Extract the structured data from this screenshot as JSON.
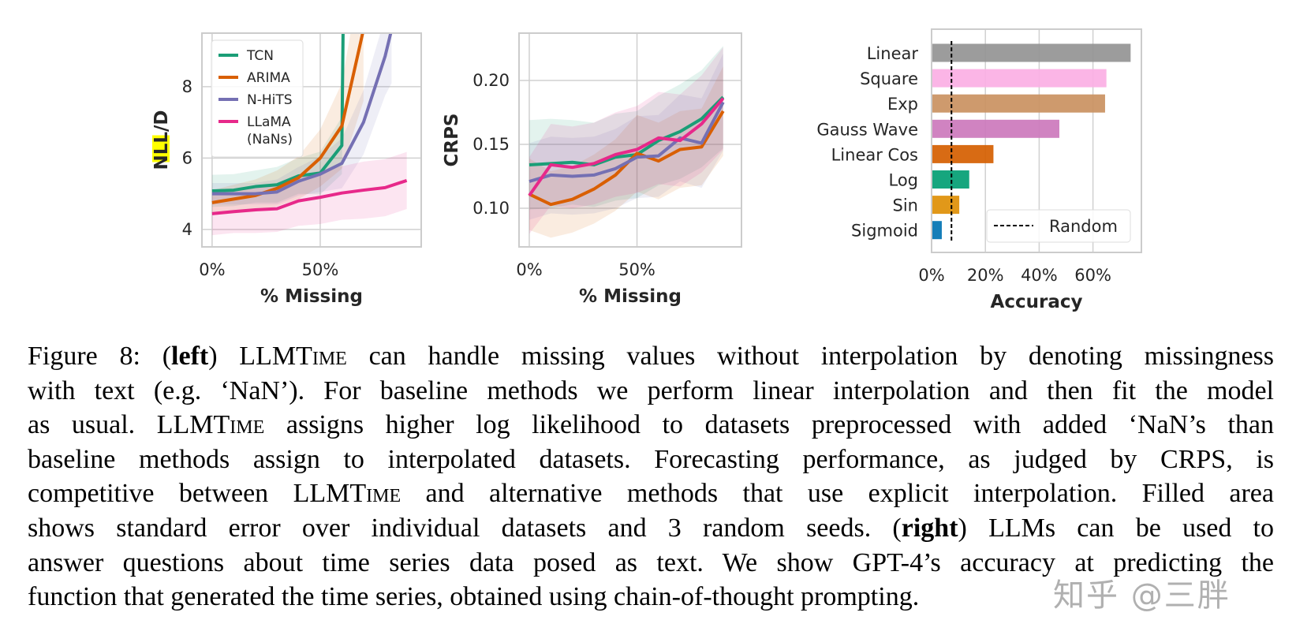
{
  "chart_data": [
    {
      "type": "line",
      "xlabel": "% Missing",
      "ylabel": "NLL/D",
      "xlim": [
        -4.7,
        96.7
      ],
      "ylim": [
        3.51,
        9.5
      ],
      "xticks": [
        0,
        50
      ],
      "xtick_labels": [
        "0%",
        "50%"
      ],
      "yticks": [
        4,
        6,
        8
      ],
      "ytick_labels": [
        "4",
        "6",
        "8"
      ],
      "grid": true,
      "legend": "top-left",
      "series": [
        {
          "name": "TCN",
          "color": "#1b9e77",
          "x": [
            0,
            10,
            20,
            30,
            40,
            50,
            60,
            61
          ],
          "y": [
            5.08,
            5.1,
            5.2,
            5.25,
            5.5,
            5.58,
            6.35,
            12
          ],
          "err": [
            0.45,
            0.45,
            0.45,
            0.5,
            0.5,
            0.6,
            0.8,
            2
          ]
        },
        {
          "name": "ARIMA",
          "color": "#d95f02",
          "x": [
            0,
            10,
            20,
            30,
            40,
            50,
            60,
            70
          ],
          "y": [
            4.75,
            4.85,
            4.95,
            5.15,
            5.45,
            6.0,
            6.9,
            9.6
          ],
          "err": [
            0.35,
            0.4,
            0.45,
            0.5,
            0.6,
            0.8,
            1.2,
            2
          ]
        },
        {
          "name": "N-HiTS",
          "color": "#7570b3",
          "x": [
            0,
            10,
            20,
            30,
            40,
            50,
            60,
            70,
            80,
            83
          ],
          "y": [
            5.0,
            5.0,
            5.0,
            5.05,
            5.35,
            5.55,
            5.85,
            7.0,
            8.85,
            9.6
          ],
          "err": [
            0.3,
            0.3,
            0.3,
            0.35,
            0.4,
            0.5,
            0.7,
            0.9,
            1.1,
            1.5
          ]
        },
        {
          "name": "LLaMA\n(NaNs)",
          "color": "#e7298a",
          "x": [
            0,
            10,
            20,
            30,
            40,
            50,
            60,
            70,
            80,
            90
          ],
          "y": [
            4.44,
            4.5,
            4.55,
            4.58,
            4.8,
            4.9,
            5.02,
            5.1,
            5.17,
            5.37
          ],
          "err": [
            0.6,
            0.6,
            0.65,
            0.65,
            0.7,
            0.75,
            0.75,
            0.8,
            0.8,
            0.8
          ]
        }
      ]
    },
    {
      "type": "line",
      "xlabel": "% Missing",
      "ylabel": "CRPS",
      "xlim": [
        -4.76,
        98.5
      ],
      "ylim": [
        0.0698,
        0.237
      ],
      "xticks": [
        0,
        50
      ],
      "xtick_labels": [
        "0%",
        "50%"
      ],
      "yticks": [
        0.1,
        0.15,
        0.2
      ],
      "ytick_labels": [
        "0.10",
        "0.15",
        "0.20"
      ],
      "grid": true,
      "series": [
        {
          "name": "TCN",
          "color": "#1b9e77",
          "x": [
            0,
            10,
            20,
            30,
            40,
            50,
            60,
            70,
            80,
            90
          ],
          "y": [
            0.134,
            0.135,
            0.136,
            0.134,
            0.14,
            0.142,
            0.153,
            0.16,
            0.17,
            0.187
          ],
          "err": [
            0.035,
            0.035,
            0.033,
            0.033,
            0.034,
            0.034,
            0.035,
            0.037,
            0.038,
            0.04
          ]
        },
        {
          "name": "ARIMA",
          "color": "#d95f02",
          "x": [
            0,
            10,
            20,
            30,
            40,
            50,
            60,
            70,
            80,
            90
          ],
          "y": [
            0.111,
            0.103,
            0.107,
            0.115,
            0.126,
            0.143,
            0.137,
            0.146,
            0.148,
            0.176
          ],
          "err": [
            0.028,
            0.026,
            0.026,
            0.027,
            0.028,
            0.03,
            0.03,
            0.03,
            0.03,
            0.035
          ]
        },
        {
          "name": "N-HiTS",
          "color": "#7570b3",
          "x": [
            0,
            10,
            20,
            30,
            40,
            50,
            60,
            70,
            80,
            90
          ],
          "y": [
            0.121,
            0.126,
            0.125,
            0.126,
            0.131,
            0.14,
            0.141,
            0.155,
            0.151,
            0.183
          ],
          "err": [
            0.03,
            0.03,
            0.03,
            0.03,
            0.031,
            0.032,
            0.032,
            0.034,
            0.035,
            0.038
          ]
        },
        {
          "name": "LLaMA (NaNs)",
          "color": "#e7298a",
          "x": [
            0,
            10,
            20,
            30,
            40,
            50,
            60,
            70,
            80,
            90
          ],
          "y": [
            0.11,
            0.134,
            0.132,
            0.135,
            0.142,
            0.146,
            0.155,
            0.153,
            0.166,
            0.186
          ],
          "err": [
            0.03,
            0.032,
            0.032,
            0.032,
            0.033,
            0.034,
            0.036,
            0.036,
            0.038,
            0.04
          ]
        }
      ]
    },
    {
      "type": "bar",
      "orientation": "horizontal",
      "xlabel": "Accuracy",
      "xlim": [
        0,
        78
      ],
      "xticks": [
        0,
        20,
        40,
        60
      ],
      "xtick_labels": [
        "0%",
        "20%",
        "40%",
        "60%"
      ],
      "grid": true,
      "legend": "bottom-right",
      "categories": [
        "Linear",
        "Square",
        "Exp",
        "Gauss Wave",
        "Linear Cos",
        "Log",
        "Sin",
        "Sigmoid"
      ],
      "values": [
        74,
        65,
        64.5,
        47.5,
        23,
        14,
        10.3,
        3.8
      ],
      "colors": [
        "#949494",
        "#fbafe4",
        "#ca9161",
        "#cc78bc",
        "#d55e00",
        "#029e73",
        "#de8f05",
        "#0173b2"
      ],
      "reference_line": {
        "name": "Random",
        "value": 7.4,
        "style": "dashed"
      }
    }
  ],
  "caption": {
    "lines": [
      [
        {
          "t": "Figure 8: ("
        },
        {
          "t": "left",
          "s": "b"
        },
        {
          "t": ") LLMT"
        },
        {
          "t": "ime",
          "s": "sc"
        },
        {
          "t": " can handle missing values without interpolation by denoting missingness"
        }
      ],
      [
        {
          "t": "with text (e.g. ‘NaN’). For baseline methods we perform linear interpolation and then fit the model"
        }
      ],
      [
        {
          "t": "as usual. LLMT"
        },
        {
          "t": "ime",
          "s": "sc"
        },
        {
          "t": " assigns higher log likelihood to datasets preprocessed with added ‘NaN’s than"
        }
      ],
      [
        {
          "t": "baseline methods assign to interpolated datasets. Forecasting performance, as judged by CRPS, is"
        }
      ],
      [
        {
          "t": "competitive between LLMT"
        },
        {
          "t": "ime",
          "s": "sc"
        },
        {
          "t": " and alternative methods that use explicit interpolation. Filled area"
        }
      ],
      [
        {
          "t": "shows standard error over individual datasets and 3 random seeds. ("
        },
        {
          "t": "right",
          "s": "b"
        },
        {
          "t": ") LLMs can be used to"
        }
      ],
      [
        {
          "t": "answer questions about time series data posed as text. We show GPT-4’s accuracy at predicting the"
        }
      ],
      [
        {
          "t": "function that generated the time series, obtained using chain-of-thought prompting."
        }
      ]
    ]
  },
  "watermark": "知乎 @三胖"
}
